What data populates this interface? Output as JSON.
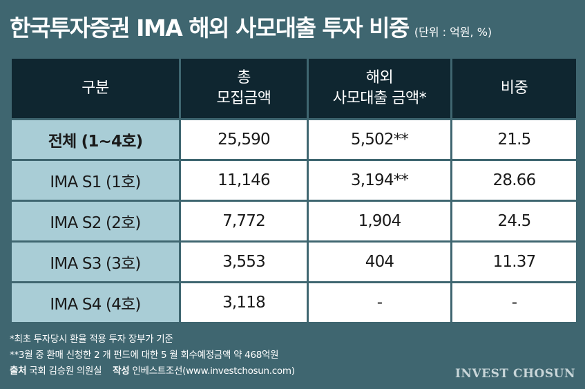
{
  "header": {
    "title": "한국투자증권 IMA 해외 사모대출 투자 비중",
    "unit": "(단위 : 억원, %)"
  },
  "table": {
    "headers": [
      [
        "구분"
      ],
      [
        "총",
        "모집금액"
      ],
      [
        "해외",
        "사모대출 금액*"
      ],
      [
        "비중"
      ]
    ],
    "rows": [
      {
        "label": "전체 (1~4호)",
        "total": "25,590",
        "overseas": "5,502**",
        "ratio": "21.5"
      },
      {
        "label": "IMA S1 (1호)",
        "total": "11,146",
        "overseas": "3,194**",
        "ratio": "28.66"
      },
      {
        "label": "IMA S2 (2호)",
        "total": "7,772",
        "overseas": "1,904",
        "ratio": "24.5"
      },
      {
        "label": "IMA S3 (3호)",
        "total": "3,553",
        "overseas": "404",
        "ratio": "11.37"
      },
      {
        "label": "IMA S4 (4호)",
        "total": "3,118",
        "overseas": "-",
        "ratio": "-"
      }
    ]
  },
  "notes": {
    "note1": "*최초 투자당시 환율 적용 투자 장부가 기준",
    "note2": "**3월 중 환매 신청한 2 개 펀드에 대한 5 월 회수예정금액 약 468억원",
    "source_label": "출처",
    "source_value": "국회 김승원 의원실",
    "author_label": "작성",
    "author_value": "인베스트조선(www.investchosun.com)"
  },
  "brand": "INVEST CHOSUN",
  "colors": {
    "background": "#3f6670",
    "header_cell": "#0f2630",
    "label_cell": "#a9cdd6",
    "value_cell": "#ffffff"
  }
}
